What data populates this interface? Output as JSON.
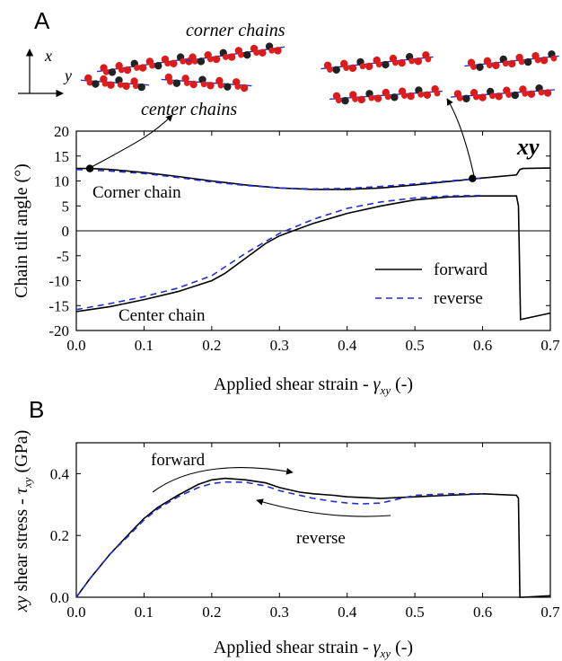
{
  "chart_data": [
    {
      "panel": "A",
      "type": "line",
      "ylabel": "Chain tilt angle (°)",
      "xlabel": "Applied shear strain - γxy (-)",
      "xlabel_parts": {
        "pre": "Applied shear strain - ",
        "sym": "γ",
        "sub": "xy",
        "post": " (-)"
      },
      "xlim": [
        0,
        0.7
      ],
      "ylim": [
        -20,
        20
      ],
      "xticks": [
        "0.0",
        "0.1",
        "0.2",
        "0.3",
        "0.4",
        "0.5",
        "0.6",
        "0.7"
      ],
      "yticks": [
        "20",
        "15",
        "10",
        "5",
        "0",
        "-5",
        "-10",
        "-15",
        "-20"
      ],
      "corner_label": "xy",
      "annotations": {
        "corner_chain": "Corner chain",
        "center_chain": "Center chain"
      },
      "inset_labels": {
        "corner_chains": "corner chains",
        "center_chains": "center chains",
        "axis_x": "x",
        "axis_y": "y"
      },
      "legend": {
        "position": "bottom-right",
        "entries": [
          "forward",
          "reverse"
        ]
      },
      "series": [
        {
          "name": "forward",
          "group": "corner",
          "color": "#000000",
          "dash": "solid",
          "x": [
            0,
            0.02,
            0.05,
            0.1,
            0.15,
            0.2,
            0.25,
            0.3,
            0.35,
            0.4,
            0.45,
            0.5,
            0.55,
            0.6,
            0.65,
            0.655,
            0.66,
            0.7
          ],
          "y": [
            12.5,
            12.5,
            12.3,
            11.7,
            10.9,
            10.0,
            9.2,
            8.6,
            8.3,
            8.3,
            8.6,
            9.2,
            9.9,
            10.6,
            11.2,
            12.3,
            12.5,
            12.6
          ]
        },
        {
          "name": "reverse",
          "group": "corner",
          "color": "#1f2fd1",
          "dash": "dashed",
          "x": [
            0,
            0.05,
            0.1,
            0.15,
            0.2,
            0.25,
            0.3,
            0.35,
            0.4,
            0.45,
            0.5,
            0.55,
            0.6
          ],
          "y": [
            12.3,
            12.0,
            11.5,
            10.7,
            9.8,
            9.1,
            8.6,
            8.4,
            8.5,
            8.9,
            9.4,
            10.0,
            10.6
          ]
        },
        {
          "name": "forward",
          "group": "center",
          "color": "#000000",
          "dash": "solid",
          "x": [
            0,
            0.05,
            0.1,
            0.15,
            0.2,
            0.22,
            0.25,
            0.28,
            0.3,
            0.35,
            0.4,
            0.45,
            0.5,
            0.55,
            0.6,
            0.65,
            0.653,
            0.656,
            0.7
          ],
          "y": [
            -16.2,
            -15.2,
            -13.8,
            -12.2,
            -10.0,
            -8.5,
            -5.5,
            -2.5,
            -1.0,
            1.5,
            3.5,
            5.0,
            6.2,
            6.8,
            7.0,
            7.0,
            5.0,
            -17.8,
            -16.5
          ]
        },
        {
          "name": "reverse",
          "group": "center",
          "color": "#1f2fd1",
          "dash": "dashed",
          "x": [
            0,
            0.05,
            0.1,
            0.15,
            0.2,
            0.25,
            0.3,
            0.35,
            0.4,
            0.45,
            0.5,
            0.55,
            0.6
          ],
          "y": [
            -15.8,
            -14.6,
            -13.2,
            -11.5,
            -9.0,
            -4.5,
            -0.5,
            2.3,
            4.5,
            5.8,
            6.6,
            7.0,
            7.1
          ]
        }
      ],
      "markers": [
        {
          "x": 0.02,
          "y": 12.5
        },
        {
          "x": 0.585,
          "y": 10.5
        }
      ]
    },
    {
      "panel": "B",
      "type": "line",
      "ylabel": "xy shear stress - τxy (GPa)",
      "ylabel_parts": {
        "pre": "xy",
        "mid": " shear stress - ",
        "sym": "τ",
        "sub": "xy",
        "post": " (GPa)"
      },
      "xlabel": "Applied shear strain - γxy (-)",
      "xlabel_parts": {
        "pre": "Applied shear strain - ",
        "sym": "γ",
        "sub": "xy",
        "post": " (-)"
      },
      "xlim": [
        0,
        0.7
      ],
      "ylim": [
        0,
        0.5
      ],
      "xticks": [
        "0.0",
        "0.1",
        "0.2",
        "0.3",
        "0.4",
        "0.5",
        "0.6",
        "0.7"
      ],
      "yticks": [
        "0.4",
        "0.2",
        "0.0"
      ],
      "annotations": {
        "forward": "forward",
        "reverse": "reverse"
      },
      "series": [
        {
          "name": "forward",
          "color": "#000000",
          "dash": "solid",
          "x": [
            0,
            0.02,
            0.05,
            0.08,
            0.1,
            0.12,
            0.15,
            0.18,
            0.2,
            0.22,
            0.25,
            0.28,
            0.3,
            0.33,
            0.35,
            0.38,
            0.4,
            0.45,
            0.5,
            0.55,
            0.6,
            0.65,
            0.653,
            0.655,
            0.66,
            0.7
          ],
          "y": [
            0,
            0.06,
            0.14,
            0.21,
            0.255,
            0.29,
            0.33,
            0.365,
            0.38,
            0.385,
            0.38,
            0.37,
            0.355,
            0.34,
            0.335,
            0.33,
            0.325,
            0.32,
            0.325,
            0.33,
            0.335,
            0.33,
            0.32,
            0.0,
            0.0,
            0.005
          ]
        },
        {
          "name": "reverse",
          "color": "#1f2fd1",
          "dash": "dashed",
          "x": [
            0,
            0.02,
            0.05,
            0.08,
            0.1,
            0.12,
            0.15,
            0.18,
            0.2,
            0.22,
            0.25,
            0.28,
            0.3,
            0.33,
            0.35,
            0.38,
            0.4,
            0.42,
            0.45,
            0.48,
            0.5,
            0.55,
            0.6
          ],
          "y": [
            0,
            0.06,
            0.14,
            0.205,
            0.25,
            0.285,
            0.325,
            0.355,
            0.368,
            0.373,
            0.372,
            0.36,
            0.345,
            0.33,
            0.32,
            0.31,
            0.305,
            0.302,
            0.305,
            0.32,
            0.33,
            0.335,
            0.335
          ]
        }
      ]
    }
  ]
}
